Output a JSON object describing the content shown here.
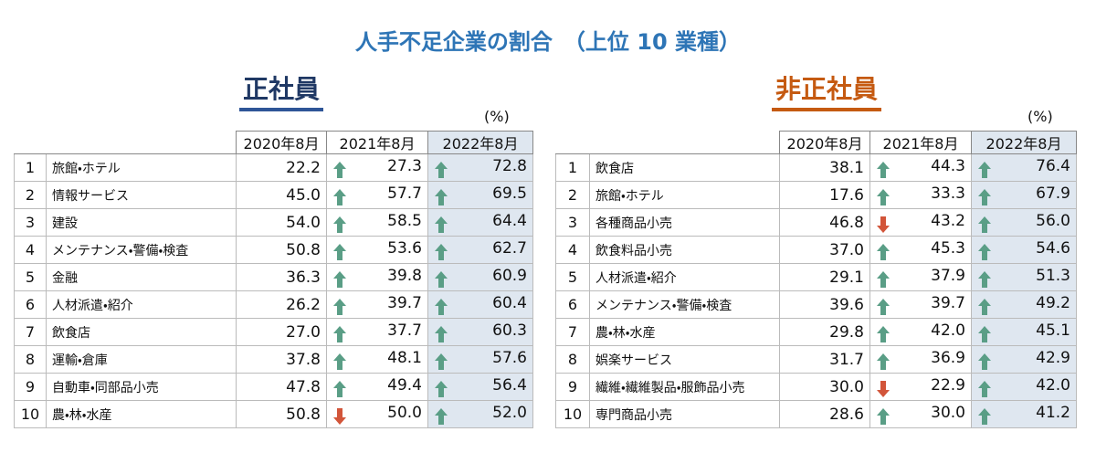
{
  "title": "人手不足企業の割合　（上位 10 業種）",
  "tables": [
    {
      "heading": "正社員",
      "unit": "(%)",
      "columns": [
        "2020年8月",
        "2021年8月",
        "2022年8月"
      ],
      "rows": [
        {
          "rank": 1,
          "name": "旅館・ホテル",
          "values": [
            "22.2",
            "27.3",
            "72.8"
          ]
        },
        {
          "rank": 2,
          "name": "情報サービス",
          "values": [
            "45.0",
            "57.7",
            "69.5"
          ]
        },
        {
          "rank": 3,
          "name": "建設",
          "values": [
            "54.0",
            "58.5",
            "64.4"
          ]
        },
        {
          "rank": 4,
          "name": "メンテナンス・警備・検査",
          "values": [
            "50.8",
            "53.6",
            "62.7"
          ]
        },
        {
          "rank": 5,
          "name": "金融",
          "values": [
            "36.3",
            "39.8",
            "60.9"
          ]
        },
        {
          "rank": 6,
          "name": "人材派遣・紹介",
          "values": [
            "26.2",
            "39.7",
            "60.4"
          ]
        },
        {
          "rank": 7,
          "name": "飲食店",
          "values": [
            "27.0",
            "37.7",
            "60.3"
          ]
        },
        {
          "rank": 8,
          "name": "運輸・倉庫",
          "values": [
            "37.8",
            "48.1",
            "57.6"
          ]
        },
        {
          "rank": 9,
          "name": "自動車・同部品小売",
          "values": [
            "47.8",
            "49.4",
            "56.4"
          ]
        },
        {
          "rank": 10,
          "name": "農・林・水産",
          "values": [
            "50.8",
            "50.0",
            "52.0"
          ]
        }
      ]
    },
    {
      "heading": "非正社員",
      "unit": "(%)",
      "columns": [
        "2020年8月",
        "2021年8月",
        "2022年8月"
      ],
      "rows": [
        {
          "rank": 1,
          "name": "飲食店",
          "values": [
            "38.1",
            "44.3",
            "76.4"
          ]
        },
        {
          "rank": 2,
          "name": "旅館・ホテル",
          "values": [
            "17.6",
            "33.3",
            "67.9"
          ]
        },
        {
          "rank": 3,
          "name": "各種商品小売",
          "values": [
            "46.8",
            "43.2",
            "56.0"
          ]
        },
        {
          "rank": 4,
          "name": "飲食料品小売",
          "values": [
            "37.0",
            "45.3",
            "54.6"
          ]
        },
        {
          "rank": 5,
          "name": "人材派遣・紹介",
          "values": [
            "29.1",
            "37.9",
            "51.3"
          ]
        },
        {
          "rank": 6,
          "name": "メンテナンス・警備・検査",
          "values": [
            "39.6",
            "39.7",
            "49.2"
          ]
        },
        {
          "rank": 7,
          "name": "農・林・水産",
          "values": [
            "29.8",
            "42.0",
            "45.1"
          ]
        },
        {
          "rank": 8,
          "name": "娯楽サービス",
          "values": [
            "31.7",
            "36.9",
            "42.9"
          ]
        },
        {
          "rank": 9,
          "name": "繊維・繊維製品・服飾品小売",
          "values": [
            "30.0",
            "22.9",
            "42.0"
          ]
        },
        {
          "rank": 10,
          "name": "専門商品小売",
          "values": [
            "28.6",
            "30.0",
            "41.2"
          ]
        }
      ]
    }
  ]
}
